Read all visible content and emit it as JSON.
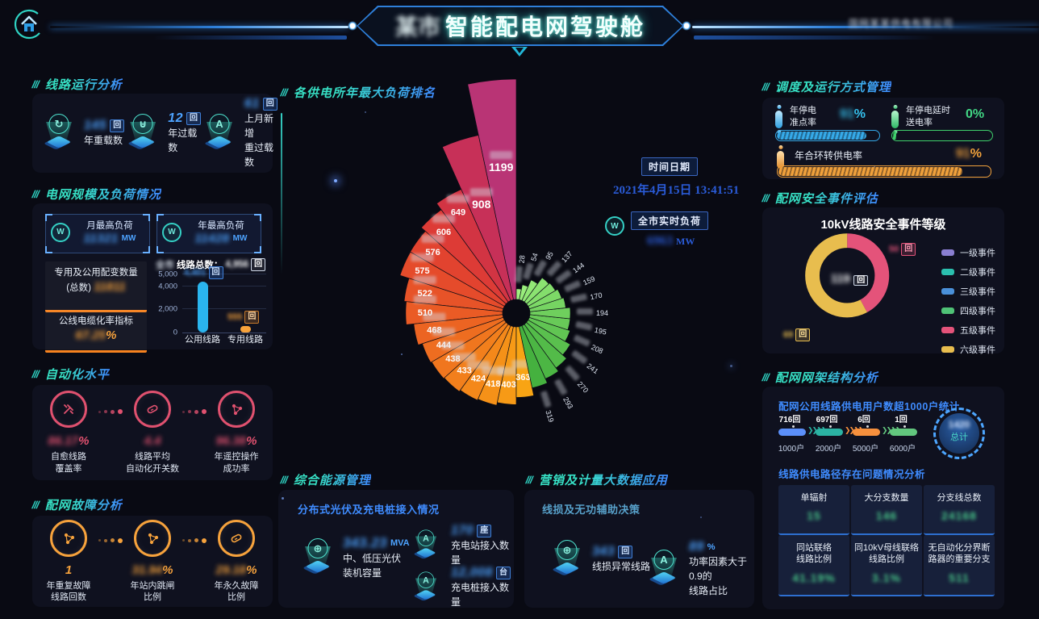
{
  "header": {
    "title_prefix_masked": "某市",
    "title": "智能配电网驾驶舱",
    "corner_text_masked": "国网某某供电有限公司"
  },
  "clock": {
    "badge": "时间日期",
    "datetime": "2021年4月15日 13:41:51"
  },
  "realtime_load": {
    "badge": "全市实时负荷",
    "value_masked": "6963",
    "unit": "MW"
  },
  "line_operation": {
    "title": "线路运行分析",
    "stats": [
      {
        "icon": "cycle",
        "value": "145",
        "unit": "回",
        "label": "年重载数"
      },
      {
        "icon": "overload",
        "value": "12",
        "unit": "回",
        "label": "年过载数"
      },
      {
        "icon": "ampere",
        "value": "61",
        "unit": "回",
        "label": "上月新增\n重过载数"
      }
    ]
  },
  "grid_scale": {
    "title": "电网规模及负荷情况",
    "monthly_peak": {
      "icon": "watt",
      "label": "月最高负荷",
      "value_masked": "11321",
      "unit": "MW"
    },
    "yearly_peak": {
      "icon": "watt",
      "label": "年最高负荷",
      "value_masked": "11428",
      "unit": "MW"
    },
    "transformer_total": {
      "label": "专用及公用配变数量\n(总数)",
      "value_masked": "11811"
    },
    "cable_rate": {
      "label": "公线电缆化率指标",
      "value_masked": "67.25",
      "unit": "%"
    }
  },
  "automation": {
    "title": "自动化水平",
    "accent": "#e0516f",
    "stats": [
      {
        "icon": "tools",
        "value": "86.17",
        "unit": "%",
        "label": "自愈线路\n覆盖率"
      },
      {
        "icon": "switch",
        "value": "4.4",
        "unit": "",
        "label": "线路平均\n自动化开关数"
      },
      {
        "icon": "share-node",
        "value": "96.38",
        "unit": "%",
        "label": "年遥控操作\n成功率"
      }
    ]
  },
  "fault": {
    "title": "配网故障分析",
    "accent": "#f6a23c",
    "stats": [
      {
        "icon": "share-node",
        "value": "1",
        "unit": "",
        "masked": false,
        "label": "年重复故障\n线路回数"
      },
      {
        "icon": "share-node",
        "value": "31.94",
        "unit": "%",
        "masked": true,
        "label": "年站内跳闸\n比例"
      },
      {
        "icon": "battery",
        "value": "29.18",
        "unit": "%",
        "masked": true,
        "label": "年永久故障\n比例"
      }
    ]
  },
  "rose_section_title": "各供电所年最大负荷排名",
  "dispatch": {
    "title": "调度及运行方式管理",
    "bars": [
      {
        "label": "年停电\n准点率",
        "value_masked": "91",
        "unit": "%",
        "percent": 88,
        "color": "#35a9e8",
        "value_color": "#35c3f0"
      },
      {
        "label": "年停电延时\n送电率",
        "value": "0",
        "unit": "%",
        "percent": 3,
        "color": "#3fd06c",
        "value_color": "#42d885"
      },
      {
        "label": "年合环转供电率",
        "value_masked": "91",
        "unit": "%",
        "percent": 87,
        "color": "#f2a23c",
        "value_color": "#f2a23c"
      }
    ]
  },
  "safety": {
    "title": "配网安全事件评估",
    "chart_title": "10kV线路安全事件等级",
    "center_value_masked": "119",
    "center_unit": "回",
    "slice_label_pink_masked": "50",
    "slice_label_yellow_masked": "69",
    "slice_unit": "回"
  },
  "structure": {
    "title": "配网网架结构分析",
    "subtitle1": "配网公用线路供电用户数超1000户统计",
    "flow": [
      {
        "top": "716回",
        "bottom": "1000户",
        "color": "#5b8ff9"
      },
      {
        "top": "697回",
        "bottom": "2000户",
        "color": "#2bb3a3"
      },
      {
        "top": "6回",
        "bottom": "5000户",
        "color": "#f6903d"
      },
      {
        "top": "1回",
        "bottom": "6000户",
        "color": "#62c77e"
      }
    ],
    "total": {
      "value_masked": "1420",
      "label": "总计"
    },
    "subtitle2": "线路供电路径存在问题情况分析",
    "cells": [
      {
        "label": "单辐射",
        "value_masked": "15"
      },
      {
        "label": "大分支数量",
        "value_masked": "146"
      },
      {
        "label": "分支线总数",
        "value_masked": "24168"
      },
      {
        "label": "同站联络\n线路比例",
        "value_masked": "41.19%"
      },
      {
        "label": "同10kV母线联络\n线路比例",
        "value_masked": "3.1%"
      },
      {
        "label": "无自动化分界断\n路器的重要分支",
        "value_masked": "511"
      }
    ]
  },
  "energy": {
    "title": "综合能源管理",
    "subtitle": "分布式光伏及充电桩接入情况",
    "stats": [
      {
        "icon": "globe",
        "value_masked": "343.23",
        "unit": "MVA",
        "unit_style": "text",
        "label": "中、低压光伏\n装机容量"
      },
      {
        "icon": "ampere",
        "value_masked": "170",
        "unit": "座",
        "unit_style": "badge",
        "label": "充电站接入数量"
      },
      {
        "icon": "ampere",
        "value_masked": "12,008",
        "unit": "台",
        "unit_style": "badge",
        "label": "充电桩接入数量"
      }
    ]
  },
  "marketing": {
    "title": "营销及计量大数据应用",
    "subtitle": "线损及无功辅助决策",
    "stats": [
      {
        "icon": "globe",
        "value_masked": "343",
        "unit": "回",
        "unit_style": "badge",
        "label": "线损异常线路"
      },
      {
        "icon": "ampere",
        "value_masked": "89",
        "unit": "%",
        "unit_style": "text",
        "label": "功率因素大于0.9的\n线路占比"
      }
    ]
  },
  "chart_data": [
    {
      "type": "pie",
      "variant": "nightingale-rose",
      "title": "各供电所年最大负荷排名",
      "labels_masked": true,
      "values": [
        1199,
        908,
        649,
        606,
        576,
        575,
        522,
        510,
        468,
        444,
        438,
        433,
        424,
        418,
        403,
        363,
        319,
        293,
        270,
        241,
        208,
        195,
        194,
        170,
        159,
        144,
        137,
        95,
        54,
        28
      ],
      "colors": [
        "#b93475",
        "#c73058",
        "#d23443",
        "#dd3b36",
        "#e2432f",
        "#e54b2b",
        "#e75328",
        "#ea5b25",
        "#ec6422",
        "#ee6d20",
        "#f0761e",
        "#f27f1c",
        "#f4881a",
        "#f59118",
        "#f79a16",
        "#f8a414",
        "#45b13f",
        "#4cb644",
        "#53bb49",
        "#5ac04e",
        "#61c553",
        "#68ca58",
        "#6fcf5d",
        "#76d462",
        "#7dd967",
        "#84de6c",
        "#8be371",
        "#92e876",
        "#99ed7b",
        "#a0f280"
      ],
      "layout": "largest wedge at top, descending counter-clockwise"
    },
    {
      "type": "bar",
      "title_prefix_masked": "全市",
      "title": "线路总数：",
      "total_masked": "4,956",
      "total_unit": "回",
      "categories": [
        "公用线路",
        "专用线路"
      ],
      "values": [
        4401,
        555
      ],
      "bar_labels_masked": [
        "4,401",
        "555"
      ],
      "bar_label_unit": "回",
      "colors": [
        "#2ab5ee",
        "#f7a23b"
      ],
      "ylim": [
        0,
        5000
      ],
      "yticks": [
        "5,000",
        "4,000",
        "2,000",
        "0"
      ]
    },
    {
      "type": "pie",
      "variant": "donut",
      "title": "10kV线路安全事件等级",
      "labels": [
        "一级事件",
        "二级事件",
        "三级事件",
        "四级事件",
        "五级事件",
        "六级事件"
      ],
      "values": [
        0,
        0,
        0,
        0,
        50,
        69
      ],
      "colors": [
        "#8a7fd1",
        "#2bbfae",
        "#4a90d9",
        "#4fc276",
        "#e4537a",
        "#e8bd4e"
      ],
      "center_value": "119回",
      "legend_position": "right"
    }
  ]
}
